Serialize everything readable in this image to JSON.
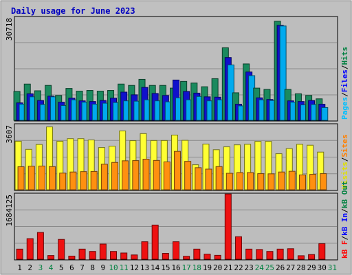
{
  "chart_data": {
    "type": "bar",
    "title": "Daily usage for June 2023",
    "categories": [
      "1",
      "2",
      "3",
      "4",
      "5",
      "6",
      "7",
      "8",
      "9",
      "10",
      "11",
      "12",
      "13",
      "14",
      "15",
      "16",
      "17",
      "18",
      "19",
      "20",
      "21",
      "22",
      "23",
      "24",
      "25",
      "26",
      "27",
      "28",
      "29",
      "30",
      "31"
    ],
    "weekend_days": [
      "3",
      "4",
      "10",
      "11",
      "17",
      "18",
      "24",
      "25",
      "31"
    ],
    "panels": [
      {
        "id": "hits_files_pages",
        "max_label": "30718",
        "ylim": [
          0,
          30718
        ],
        "right_labels": [
          {
            "text": "Pages",
            "color": "#00c0ff"
          },
          {
            "text": "Files",
            "color": "#0000ff"
          },
          {
            "text": "Hits",
            "color": "#008040"
          }
        ],
        "series": [
          {
            "name": "Hits",
            "color": "#1a8a5e",
            "values": [
              8600,
              10800,
              8800,
              10400,
              7400,
              9500,
              8700,
              8900,
              8700,
              8900,
              10800,
              10400,
              12200,
              10400,
              10400,
              9600,
              11600,
              11100,
              10000,
              12400,
              21600,
              8200,
              16800,
              9600,
              9200,
              29500,
              9200,
              7900,
              7400,
              6400,
              null
            ]
          },
          {
            "name": "Files",
            "color": "#1010cc",
            "values": [
              5200,
              7900,
              5900,
              7200,
              5400,
              6600,
              5800,
              5600,
              5900,
              6600,
              8400,
              7600,
              9800,
              8000,
              7400,
              12000,
              8600,
              8100,
              7000,
              6900,
              18700,
              4800,
              14400,
              6700,
              6200,
              28300,
              5800,
              5600,
              5900,
              4800,
              null
            ]
          },
          {
            "name": "Pages",
            "color": "#00aaee",
            "values": [
              4800,
              7000,
              4700,
              7000,
              4400,
              6100,
              5400,
              4800,
              5100,
              5300,
              5800,
              5700,
              6100,
              5800,
              5500,
              6700,
              6100,
              7100,
              5800,
              6100,
              16500,
              4300,
              13300,
              6100,
              5900,
              28100,
              5400,
              4600,
              4700,
              3800,
              null
            ]
          }
        ]
      },
      {
        "id": "visits_sites",
        "max_label": "3607",
        "ylim": [
          0,
          3607
        ],
        "right_labels": [
          {
            "text": "Visits",
            "color": "#e0e000"
          },
          {
            "text": "Sites",
            "color": "#ff8000"
          }
        ],
        "series": [
          {
            "name": "Visits",
            "color": "#ffff33",
            "values": [
              2680,
              2230,
              2500,
              3470,
              2680,
              2820,
              2820,
              2750,
              2330,
              2410,
              3250,
              2710,
              3100,
              2720,
              2720,
              3020,
              2730,
              1380,
              2520,
              2210,
              2370,
              2480,
              2510,
              2670,
              2670,
              1990,
              2270,
              2510,
              2460,
              2080,
              null
            ]
          },
          {
            "name": "Sites",
            "color": "#ff9010",
            "values": [
              1270,
              1300,
              1310,
              1280,
              920,
              980,
              1000,
              1010,
              1410,
              1510,
              1600,
              1610,
              1690,
              1620,
              1540,
              2120,
              1570,
              1220,
              1140,
              1280,
              910,
              950,
              950,
              890,
              880,
              980,
              1020,
              820,
              850,
              890,
              null
            ]
          }
        ]
      },
      {
        "id": "kbf_kbin_kbout",
        "max_label": "1684125",
        "ylim": [
          0,
          1684125
        ],
        "right_labels": [
          {
            "text": "kB F",
            "color": "#ff0000"
          },
          {
            "text": "kB In",
            "color": "#0000ff"
          },
          {
            "text": "kB Out",
            "color": "#008040"
          }
        ],
        "series": [
          {
            "name": "kB F",
            "color": "#ee1111",
            "values": [
              260000,
              530000,
              690000,
              95000,
              510000,
              80000,
              260000,
              200000,
              390000,
              200000,
              160000,
              110000,
              450000,
              880000,
              150000,
              450000,
              75000,
              260000,
              130000,
              100000,
              1680000,
              580000,
              260000,
              250000,
              200000,
              260000,
              270000,
              90000,
              120000,
              400000,
              null
            ]
          }
        ]
      }
    ]
  }
}
